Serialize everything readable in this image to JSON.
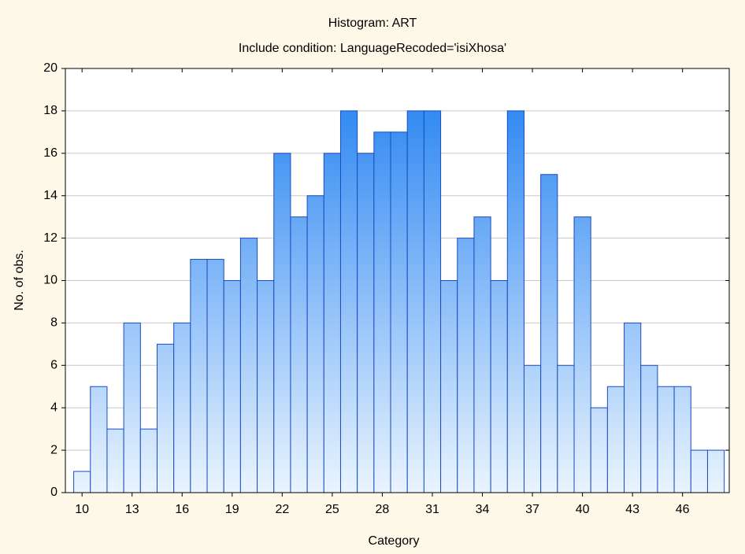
{
  "chart_data": {
    "type": "histogram",
    "title": "Histogram: ART",
    "subtitle": "Include condition: LanguageRecoded='isiXhosa'",
    "xlabel": "Category",
    "ylabel": "No. of obs.",
    "bins": [
      9.5,
      10.5,
      11.5,
      12.5,
      13.5,
      14.5,
      15.5,
      16.5,
      17.5,
      18.5,
      19.5,
      20.5,
      21.5,
      22.5,
      23.5,
      24.5,
      25.5,
      26.5,
      27.5,
      28.5,
      29.5,
      30.5,
      31.5,
      32.5,
      33.5,
      34.5,
      35.5,
      36.5,
      37.5,
      38.5,
      39.5,
      40.5,
      41.5,
      42.5,
      43.5,
      44.5,
      45.5,
      46.5,
      47.5,
      48.5
    ],
    "values": [
      1,
      5,
      3,
      8,
      3,
      7,
      8,
      11,
      11,
      10,
      12,
      10,
      16,
      13,
      14,
      16,
      18,
      16,
      17,
      17,
      18,
      18,
      10,
      12,
      13,
      10,
      18,
      6,
      15,
      6,
      13,
      4,
      5,
      8,
      6,
      5,
      5,
      2,
      2
    ],
    "xlim": [
      9,
      48.8
    ],
    "xticks": [
      10,
      13,
      16,
      19,
      22,
      25,
      28,
      31,
      34,
      37,
      40,
      43,
      46
    ],
    "ylim": [
      0,
      20
    ],
    "yticks": [
      0,
      2,
      4,
      6,
      8,
      10,
      12,
      14,
      16,
      18,
      20
    ],
    "grid": true,
    "color": "#1f7ff0",
    "edgecolor": "#1a4cc4"
  }
}
